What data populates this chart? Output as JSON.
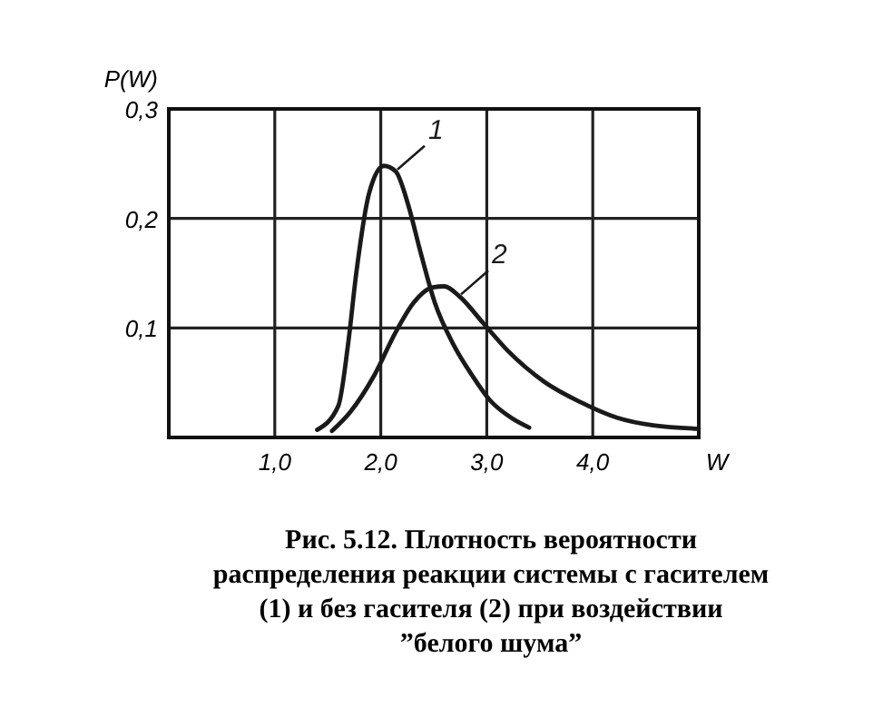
{
  "chart_data": {
    "type": "line",
    "ylabel": "P(W)",
    "xlabel": "W",
    "xlim": [
      0,
      5
    ],
    "ylim": [
      0,
      0.3
    ],
    "xticks": [
      {
        "value": 0,
        "label": null
      },
      {
        "value": 1,
        "label": "1,0"
      },
      {
        "value": 2,
        "label": "2,0"
      },
      {
        "value": 3,
        "label": "3,0"
      },
      {
        "value": 4,
        "label": "4,0"
      },
      {
        "value": 5,
        "label": null
      }
    ],
    "yticks": [
      {
        "value": 0,
        "label": null
      },
      {
        "value": 0.1,
        "label": "0,1"
      },
      {
        "value": 0.2,
        "label": "0,2"
      },
      {
        "value": 0.3,
        "label": "0,3"
      }
    ],
    "grid": true,
    "line_style": "solid",
    "marker": "none",
    "series": [
      {
        "name": "1",
        "color": "#1a1a1a",
        "x": [
          1.4,
          1.6,
          1.69,
          1.77,
          1.89,
          2.03,
          2.14,
          2.26,
          2.37,
          2.51,
          2.69,
          2.86,
          3.03,
          3.23,
          3.4
        ],
        "values": [
          0.007,
          0.029,
          0.084,
          0.151,
          0.223,
          0.248,
          0.243,
          0.212,
          0.171,
          0.123,
          0.084,
          0.057,
          0.034,
          0.018,
          0.009
        ]
      },
      {
        "name": "2",
        "color": "#1a1a1a",
        "x": [
          1.54,
          1.71,
          1.94,
          2.14,
          2.31,
          2.49,
          2.6,
          2.74,
          2.97,
          3.2,
          3.54,
          3.89,
          4.23,
          4.57,
          5.0
        ],
        "values": [
          0.006,
          0.023,
          0.057,
          0.096,
          0.123,
          0.137,
          0.138,
          0.129,
          0.104,
          0.079,
          0.051,
          0.032,
          0.018,
          0.011,
          0.008
        ]
      }
    ],
    "annotations": [
      "Рис. 5.12. Плотность вероятности распределения реакции системы с гасителем (1) и без гасителя (2) при воздействии ”белого шума”"
    ]
  }
}
